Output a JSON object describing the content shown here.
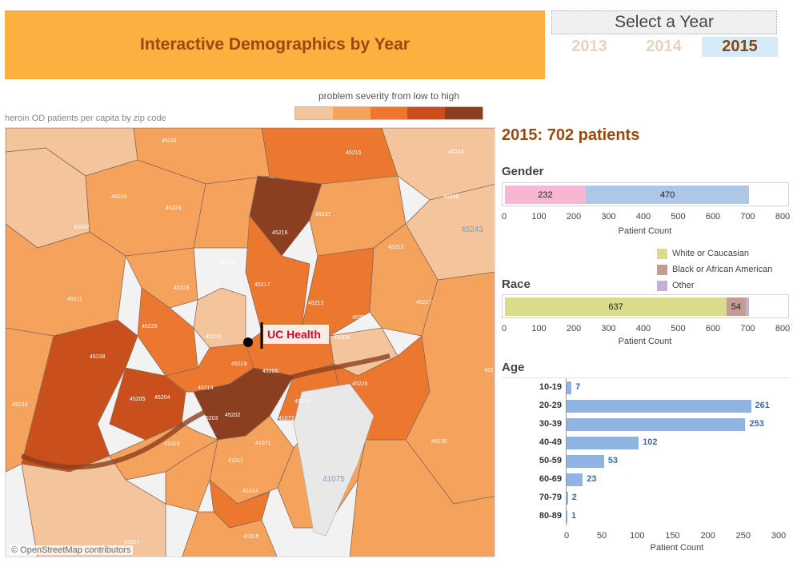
{
  "title": "Interactive Demographics by Year",
  "year_selector": {
    "header": "Select a Year",
    "years": [
      "2013",
      "2014",
      "2015"
    ],
    "selected": "2015"
  },
  "legend": {
    "title": "problem severity from low to high",
    "colors": [
      "#f4c59c",
      "#f5a35c",
      "#ec772f",
      "#c9501d",
      "#8b3e20"
    ]
  },
  "map": {
    "caption": "heroin OD patients per capita by zip code",
    "attribution": "© OpenStreetMap contributors",
    "marker_label": "UC Health",
    "zip_labels": [
      "45231",
      "45215",
      "45242",
      "45239",
      "45224",
      "45236",
      "45247",
      "45237",
      "45243",
      "45216",
      "45213",
      "45232",
      "45217",
      "45223",
      "45212",
      "45227",
      "45211",
      "45225",
      "45209",
      "45220",
      "45208",
      "45238",
      "45219",
      "45206",
      "45214",
      "45226",
      "45205",
      "45204",
      "45233",
      "45202",
      "45074",
      "45203",
      "41073",
      "45230",
      "41016",
      "41071",
      "41011",
      "41075",
      "41014",
      "41015",
      "41017",
      "452"
    ]
  },
  "summary": "2015: 702 patients",
  "chart_data": [
    {
      "type": "bar",
      "title": "Gender",
      "orientation": "horizontal-stacked",
      "series": [
        {
          "name": "",
          "values": [
            232
          ],
          "color": "#f7b6d2"
        },
        {
          "name": "",
          "values": [
            470
          ],
          "color": "#aec7e8"
        }
      ],
      "xlabel": "Patient Count",
      "xticks": [
        "0",
        "100",
        "200",
        "300",
        "400",
        "500",
        "600",
        "700",
        "800"
      ],
      "xlim": [
        0,
        800
      ]
    },
    {
      "type": "bar",
      "title": "Race",
      "orientation": "horizontal-stacked",
      "series": [
        {
          "name": "White or Caucasian",
          "values": [
            637
          ],
          "color": "#dbdb8d"
        },
        {
          "name": "Black or African American",
          "values": [
            54
          ],
          "color": "#c49c94"
        },
        {
          "name": "Other",
          "values": [
            11
          ],
          "color": "#c5b0d5"
        }
      ],
      "xlabel": "Patient Count",
      "xticks": [
        "0",
        "100",
        "200",
        "300",
        "400",
        "500",
        "600",
        "700",
        "800"
      ],
      "xlim": [
        0,
        800
      ]
    },
    {
      "type": "bar",
      "title": "Age",
      "orientation": "horizontal",
      "categories": [
        "10-19",
        "20-29",
        "30-39",
        "40-49",
        "50-59",
        "60-69",
        "70-79",
        "80-89"
      ],
      "values": [
        7,
        261,
        253,
        102,
        53,
        23,
        2,
        1
      ],
      "color": "#8fb4e1",
      "xlabel": "Patient Count",
      "xticks": [
        "0",
        "50",
        "100",
        "150",
        "200",
        "250",
        "300"
      ],
      "xlim": [
        0,
        300
      ]
    }
  ]
}
